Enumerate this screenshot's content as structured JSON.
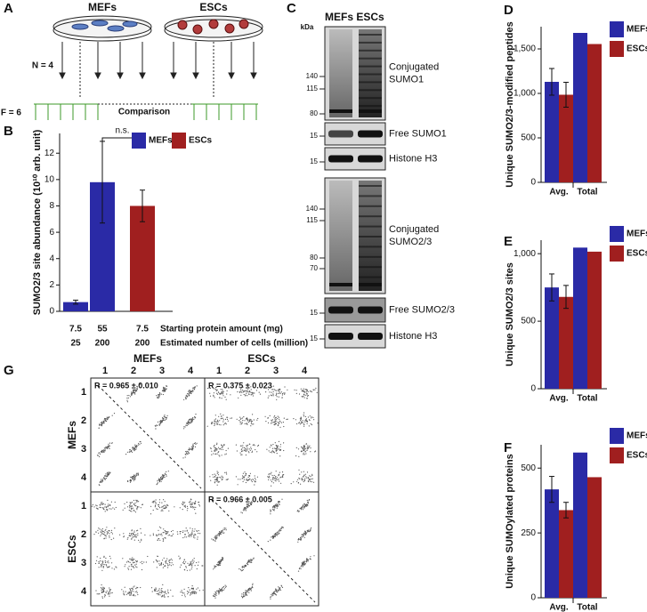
{
  "panel_labels": [
    "A",
    "B",
    "C",
    "D",
    "E",
    "F",
    "G"
  ],
  "schematic": {
    "groups": [
      "MEFs",
      "ESCs"
    ],
    "n_label": "N = 4",
    "f_label": "F = 6",
    "comparison": "Comparison"
  },
  "blot": {
    "unit": "kDa",
    "lanes": [
      "MEFs",
      "ESCs"
    ],
    "strips": [
      {
        "label": [
          "Conjugated",
          "SUMO1"
        ],
        "markers": [
          140,
          115,
          80
        ]
      },
      {
        "label": [
          "Free SUMO1"
        ],
        "markers": [
          15
        ]
      },
      {
        "label": [
          "Histone H3"
        ],
        "markers": [
          15
        ]
      },
      {
        "label": [
          "Conjugated",
          "SUMO2/3"
        ],
        "markers": [
          140,
          115,
          80,
          70
        ]
      },
      {
        "label": [
          "Free SUMO2/3"
        ],
        "markers": [
          15
        ]
      },
      {
        "label": [
          "Histone H3"
        ],
        "markers": [
          15
        ]
      }
    ]
  },
  "correlation": {
    "groups": [
      "MEFs",
      "ESCs"
    ],
    "indices": [
      1,
      2,
      3,
      4
    ],
    "annotations": [
      "R = 0.965 ± 0.010",
      "R = 0.375 ± 0.023",
      "R = 0.966 ± 0.005"
    ]
  },
  "chart_data": [
    {
      "type": "bar",
      "ylabel": "SUMO2/3 site abundance (10¹⁰ arb. unit)",
      "categories": [
        "7.5",
        "55",
        "7.5"
      ],
      "categories2": [
        "25",
        "200",
        "200"
      ],
      "row_labels": [
        "Starting protein amount (mg)",
        "Estimated number of cells (million)"
      ],
      "annotation": "n.s.",
      "series": [
        {
          "name": "MEFs",
          "color": "#2a2aa6",
          "values": [
            0.7,
            9.8,
            null
          ],
          "errors": [
            0.15,
            3.1,
            null
          ]
        },
        {
          "name": "ESCs",
          "color": "#a01f1f",
          "values": [
            null,
            null,
            8.0
          ],
          "errors": [
            null,
            null,
            1.2
          ]
        }
      ],
      "ylim": [
        0,
        13.5
      ],
      "yticks": [
        0,
        2,
        4,
        6,
        8,
        10,
        12
      ]
    },
    {
      "type": "bar",
      "ylabel": "Unique SUMO2/3-modified peptides",
      "categories": [
        "Avg.",
        "Total"
      ],
      "series": [
        {
          "name": "MEFs",
          "color": "#2a2aa6",
          "values": [
            1130,
            1680
          ],
          "errors": [
            150,
            null
          ]
        },
        {
          "name": "ESCs",
          "color": "#a01f1f",
          "values": [
            985,
            1555
          ],
          "errors": [
            140,
            null
          ]
        }
      ],
      "ylim": [
        0,
        1750
      ],
      "yticks": [
        0,
        500,
        {
          "value": 1000,
          "label": "1,000"
        },
        {
          "value": 1500,
          "label": "1,500"
        }
      ]
    },
    {
      "type": "bar",
      "ylabel": "Unique SUMO2/3 sites",
      "categories": [
        "Avg.",
        "Total"
      ],
      "series": [
        {
          "name": "MEFs",
          "color": "#2a2aa6",
          "values": [
            750,
            1045
          ],
          "errors": [
            100,
            null
          ]
        },
        {
          "name": "ESCs",
          "color": "#a01f1f",
          "values": [
            680,
            1015
          ],
          "errors": [
            85,
            null
          ]
        }
      ],
      "ylim": [
        0,
        1100
      ],
      "yticks": [
        0,
        500,
        {
          "value": 1000,
          "label": "1,000"
        }
      ]
    },
    {
      "type": "bar",
      "ylabel": "Unique SUMOylated proteins",
      "categories": [
        "Avg.",
        "Total"
      ],
      "series": [
        {
          "name": "MEFs",
          "color": "#2a2aa6",
          "values": [
            418,
            560
          ],
          "errors": [
            50,
            null
          ]
        },
        {
          "name": "ESCs",
          "color": "#a01f1f",
          "values": [
            338,
            465
          ],
          "errors": [
            30,
            null
          ]
        }
      ],
      "ylim": [
        0,
        590
      ],
      "yticks": [
        0,
        250,
        500
      ]
    }
  ]
}
